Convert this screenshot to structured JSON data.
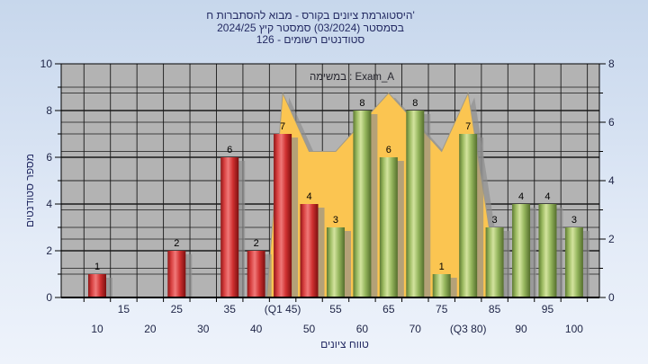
{
  "title": {
    "line1": "'היסטוגרמת ציונים בקורס - מבוא להסתברות ח",
    "line2": "בסמסטר (03/2024) סמסטר קיץ 2024/25",
    "line3": "סטודנטים רשומים - 126"
  },
  "legend": {
    "label": "במשימה : Exam_A"
  },
  "axes": {
    "y_left_title": "מספר סטודנטים",
    "x_title": "טווח ציונים"
  },
  "chart_data": {
    "type": "bar",
    "title": "היסטוגרמת ציונים בקורס - מבוא להסתברות ח' בסמסטר (03/2024) סמסטר קיץ 2024/25, סטודנטים רשומים - 126",
    "categories": [
      10,
      15,
      20,
      25,
      30,
      35,
      40,
      45,
      50,
      55,
      60,
      65,
      70,
      75,
      80,
      85,
      90,
      95,
      100
    ],
    "x_tick_labels": [
      "10",
      "15",
      "20",
      "25",
      "30",
      "35",
      "40",
      "(Q1 45)",
      "50",
      "55",
      "60",
      "65",
      "70",
      "75",
      "(Q3 80)",
      "85",
      "90",
      "95",
      "100"
    ],
    "bar_values": [
      1,
      0,
      0,
      2,
      0,
      6,
      2,
      7,
      4,
      3,
      8,
      6,
      8,
      1,
      7,
      3,
      4,
      4,
      3
    ],
    "bar_axis": "left",
    "pass_threshold": 55,
    "bar_colors": {
      "fail": "#cc2e2e",
      "pass": "#94b95c"
    },
    "bar_gradients": {
      "fail": [
        "#8e1616",
        "#d84040",
        "#f07979",
        "#cf3030",
        "#7c1010"
      ],
      "pass": [
        "#5e7a33",
        "#9ab95f",
        "#d3e39e",
        "#94b55c",
        "#546e2c"
      ]
    },
    "area_series": {
      "name": "Exam_A",
      "axis": "right",
      "color": "#fbc551",
      "points": [
        [
          42,
          0
        ],
        [
          45,
          7
        ],
        [
          50,
          5
        ],
        [
          55,
          5
        ],
        [
          60,
          6
        ],
        [
          65,
          7
        ],
        [
          70,
          6
        ],
        [
          75,
          5
        ],
        [
          80,
          7
        ],
        [
          86,
          0
        ]
      ]
    },
    "left_axis": {
      "min": 0,
      "max": 10,
      "ticks": [
        0,
        2,
        4,
        6,
        8,
        10
      ],
      "label": "מספר סטודנטים"
    },
    "right_axis": {
      "min": 0,
      "max": 8,
      "ticks": [
        0,
        2,
        4,
        6,
        8
      ]
    },
    "x_axis": {
      "label": "טווח ציונים"
    },
    "legend": "במשימה : Exam_A",
    "grid": true,
    "plot_bg": "#b3b3b3",
    "shadow_color": "#8d8d8d",
    "text_color": "#1e2446"
  }
}
